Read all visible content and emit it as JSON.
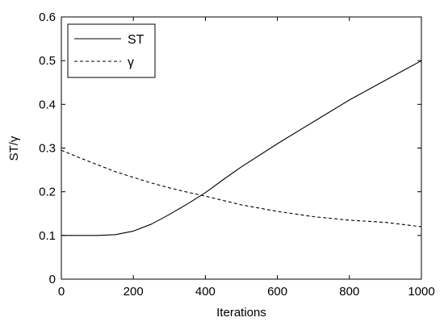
{
  "chart_data": {
    "type": "line",
    "title": "",
    "xlabel": "Iterations",
    "ylabel": "ST/γ",
    "xlim": [
      0,
      1000
    ],
    "ylim": [
      0,
      0.6
    ],
    "xticks": [
      0,
      200,
      400,
      600,
      800,
      1000
    ],
    "yticks": [
      0,
      0.1,
      0.2,
      0.3,
      0.4,
      0.5,
      0.6
    ],
    "xtick_labels": [
      "0",
      "200",
      "400",
      "600",
      "800",
      "1000"
    ],
    "ytick_labels": [
      "0",
      "0.1",
      "0.2",
      "0.3",
      "0.4",
      "0.5",
      "0.6"
    ],
    "grid": false,
    "legend_position": "top-left",
    "series": [
      {
        "name": "ST",
        "style": "solid",
        "color": "#000000",
        "x": [
          0,
          100,
          150,
          200,
          250,
          300,
          350,
          400,
          450,
          500,
          600,
          700,
          800,
          900,
          1000
        ],
        "y": [
          0.1,
          0.1,
          0.102,
          0.11,
          0.126,
          0.148,
          0.172,
          0.198,
          0.228,
          0.257,
          0.31,
          0.36,
          0.41,
          0.455,
          0.5
        ]
      },
      {
        "name": "γ",
        "style": "dashed",
        "color": "#000000",
        "x": [
          0,
          50,
          100,
          150,
          200,
          250,
          300,
          350,
          400,
          500,
          600,
          700,
          800,
          900,
          1000
        ],
        "y": [
          0.295,
          0.278,
          0.262,
          0.246,
          0.233,
          0.22,
          0.209,
          0.199,
          0.19,
          0.17,
          0.155,
          0.143,
          0.135,
          0.13,
          0.12
        ]
      }
    ]
  }
}
